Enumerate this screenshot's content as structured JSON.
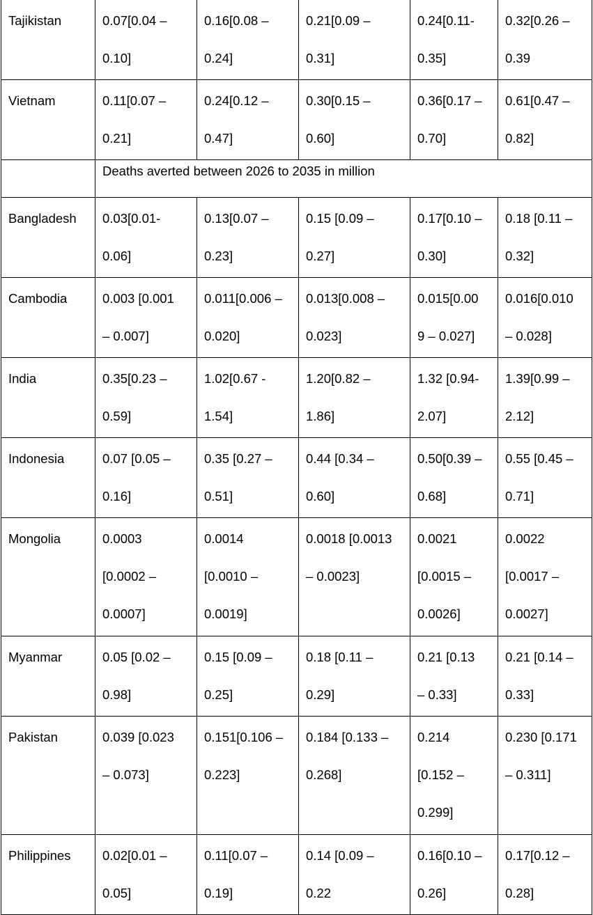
{
  "table": {
    "rows": [
      {
        "type": "data",
        "country": "Tajikistan",
        "cells": [
          [
            "0.07[0.04 –",
            "0.10]"
          ],
          [
            "0.16[0.08 –",
            "0.24]"
          ],
          [
            "0.21[0.09 –",
            "0.31]"
          ],
          [
            "0.24[0.11-",
            "0.35]"
          ],
          [
            "0.32[0.26 –",
            "0.39"
          ]
        ]
      },
      {
        "type": "data",
        "country": "Vietnam",
        "cells": [
          [
            "0.11[0.07 –",
            "0.21]"
          ],
          [
            "0.24[0.12 –",
            "0.47]"
          ],
          [
            "0.30[0.15 –",
            "0.60]"
          ],
          [
            "0.36[0.17 –",
            "0.70]"
          ],
          [
            "0.61[0.47 –",
            "0.82]"
          ]
        ]
      },
      {
        "type": "section",
        "label": "Deaths averted between 2026 to 2035 in million"
      },
      {
        "type": "data",
        "country": "Bangladesh",
        "cells": [
          [
            "0.03[0.01-",
            "0.06]"
          ],
          [
            "0.13[0.07 –",
            "0.23]"
          ],
          [
            "0.15 [0.09 –",
            "0.27]"
          ],
          [
            "0.17[0.10 –",
            "0.30]"
          ],
          [
            "0.18 [0.11 –",
            "0.32]"
          ]
        ]
      },
      {
        "type": "data",
        "country": "Cambodia",
        "cells": [
          [
            "0.003 [0.001",
            "– 0.007]"
          ],
          [
            "0.011[0.006 –",
            "0.020]"
          ],
          [
            "0.013[0.008 –",
            "0.023]"
          ],
          [
            "0.015[0.00",
            "9 – 0.027]"
          ],
          [
            "0.016[0.010",
            "– 0.028]"
          ]
        ]
      },
      {
        "type": "data",
        "country": "India",
        "cells": [
          [
            "0.35[0.23 –",
            "0.59]"
          ],
          [
            "1.02[0.67 -",
            "1.54]"
          ],
          [
            "1.20[0.82 –",
            "1.86]"
          ],
          [
            "1.32 [0.94-",
            "2.07]"
          ],
          [
            "1.39[0.99 –",
            "2.12]"
          ]
        ]
      },
      {
        "type": "data",
        "country": "Indonesia",
        "cells": [
          [
            "0.07 [0.05 –",
            "0.16]"
          ],
          [
            "0.35 [0.27 –",
            "0.51]"
          ],
          [
            "0.44 [0.34 –",
            "0.60]"
          ],
          [
            "0.50[0.39 –",
            "0.68]"
          ],
          [
            "0.55 [0.45 –",
            "0.71]"
          ]
        ]
      },
      {
        "type": "data",
        "country": "Mongolia",
        "cells": [
          [
            "0.0003",
            "[0.0002 –",
            "0.0007]"
          ],
          [
            "0.0014",
            "[0.0010 –",
            "0.0019]"
          ],
          [
            "0.0018 [0.0013",
            "– 0.0023]"
          ],
          [
            "0.0021",
            "[0.0015 –",
            "0.0026]"
          ],
          [
            "0.0022",
            "[0.0017 –",
            "0.0027]"
          ]
        ]
      },
      {
        "type": "data",
        "country": "Myanmar",
        "cells": [
          [
            "0.05 [0.02 –",
            "0.98]"
          ],
          [
            "0.15 [0.09 –",
            "0.25]"
          ],
          [
            "0.18 [0.11 –",
            "0.29]"
          ],
          [
            "0.21 [0.13",
            "– 0.33]"
          ],
          [
            "0.21 [0.14 –",
            "0.33]"
          ]
        ]
      },
      {
        "type": "data",
        "country": "Pakistan",
        "cells": [
          [
            "0.039 [0.023",
            "– 0.073]"
          ],
          [
            "0.151[0.106 –",
            "0.223]"
          ],
          [
            "0.184 [0.133 –",
            "0.268]"
          ],
          [
            "0.214",
            "[0.152 –",
            "0.299]"
          ],
          [
            "0.230 [0.171",
            "– 0.311]"
          ]
        ]
      },
      {
        "type": "data",
        "country": "Philippines",
        "cells": [
          [
            "0.02[0.01 –",
            "0.05]"
          ],
          [
            "0.11[0.07 –",
            "0.19]"
          ],
          [
            "0.14 [0.09 –",
            "0.22"
          ],
          [
            "0.16[0.10 –",
            "0.26]"
          ],
          [
            "0.17[0.12 –",
            "0.28]"
          ]
        ]
      }
    ]
  }
}
